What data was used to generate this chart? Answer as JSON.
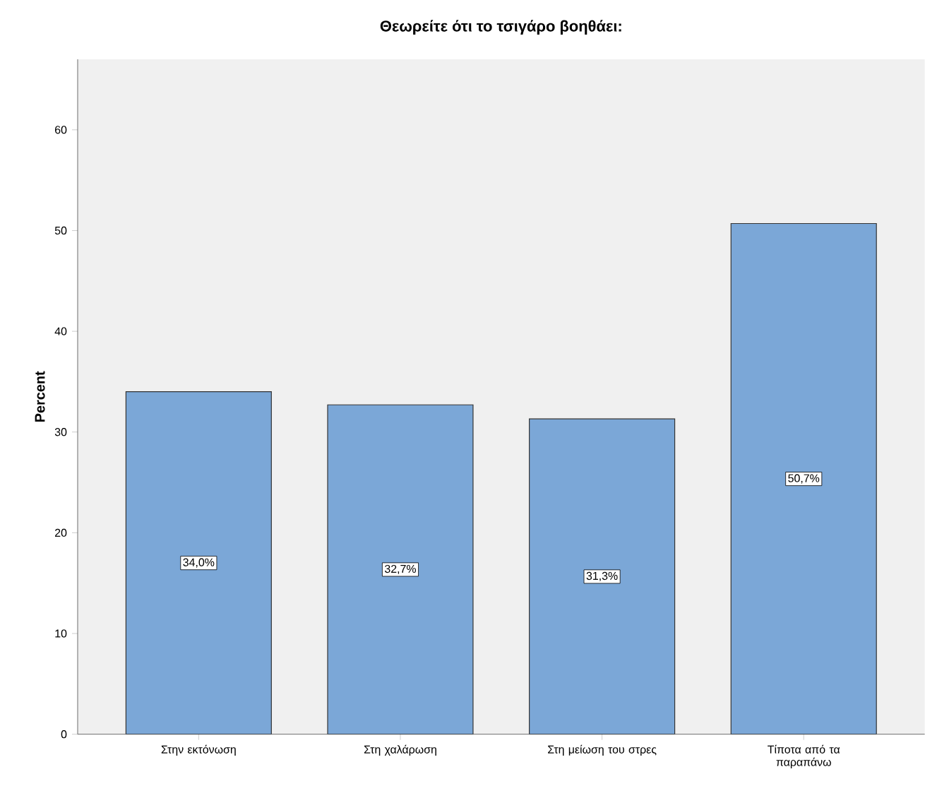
{
  "chart_data": {
    "type": "bar",
    "title": "Θεωρείτε ότι το τσιγάρο βοηθάει:",
    "ylabel": "Percent",
    "categories": [
      "Στην εκτόνωση",
      "Στη χαλάρωση",
      "Στη μείωση του στρες",
      "Τίποτα από τα παραπάνω"
    ],
    "values": [
      34.0,
      32.7,
      31.3,
      50.7
    ],
    "value_labels": [
      "34,0%",
      "32,7%",
      "31,3%",
      "50,7%"
    ],
    "color": "#7ba7d7",
    "ylim": [
      0,
      67
    ],
    "yticks": [
      0,
      10,
      20,
      30,
      40,
      50,
      60
    ]
  }
}
